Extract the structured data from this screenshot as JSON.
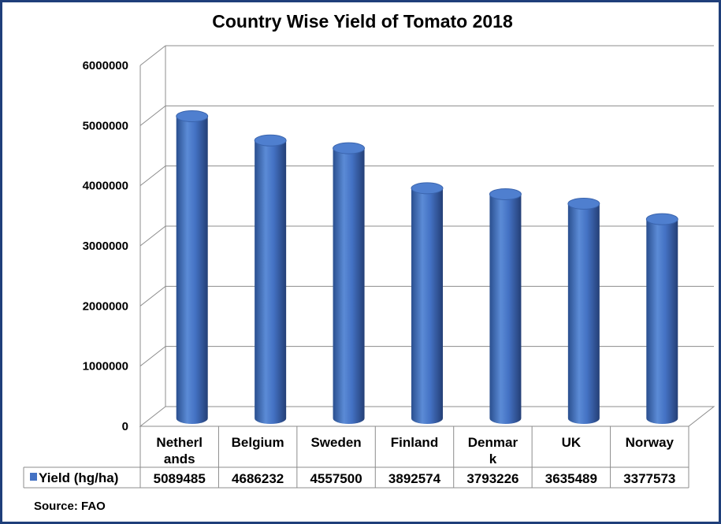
{
  "chart_data": {
    "type": "bar",
    "title": "Country Wise Yield of Tomato 2018",
    "categories": [
      "Netherlands",
      "Belgium",
      "Sweden",
      "Finland",
      "Denmark",
      "UK",
      "Norway"
    ],
    "category_lines": [
      [
        "Netherl",
        "ands"
      ],
      [
        "Belgium"
      ],
      [
        "Sweden"
      ],
      [
        "Finland"
      ],
      [
        "Denmar",
        "k"
      ],
      [
        "UK"
      ],
      [
        "Norway"
      ]
    ],
    "series": [
      {
        "name": "Yield (hg/ha)",
        "color": "#4472c4",
        "values": [
          5089485,
          4686232,
          4557500,
          3892574,
          3793226,
          3635489,
          3377573
        ],
        "labels": [
          "5089485",
          "4686232",
          "4557500",
          "3892574",
          "3793226",
          "3635489",
          "3377573"
        ]
      }
    ],
    "y_ticks": [
      0,
      1000000,
      2000000,
      3000000,
      4000000,
      5000000,
      6000000
    ],
    "ylim": [
      0,
      6000000
    ],
    "grid": true,
    "legend": "data-table",
    "xlabel": "",
    "ylabel": ""
  },
  "source": "Source: FAO"
}
